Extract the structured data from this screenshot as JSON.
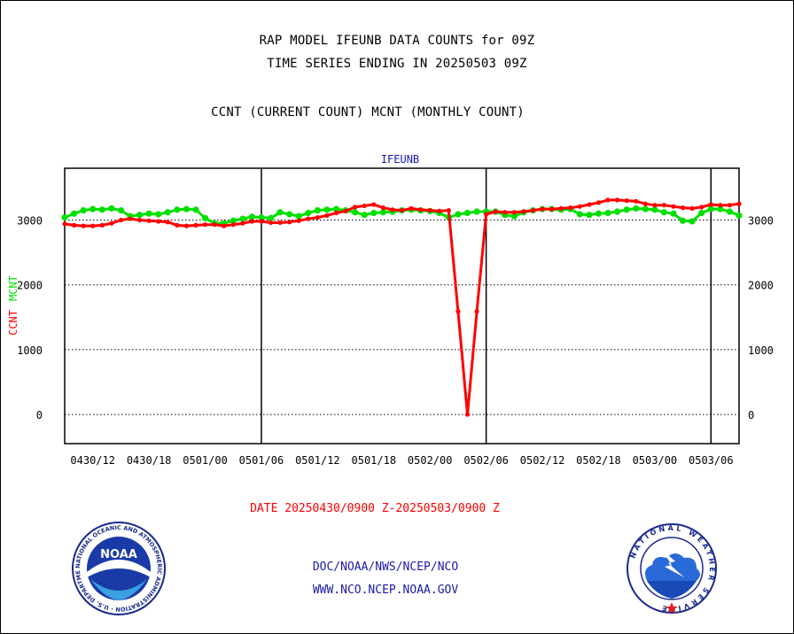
{
  "header": {
    "line1": "RAP MODEL IFEUNB DATA COUNTS for 09Z",
    "line2": "TIME SERIES ENDING IN 20250503 09Z",
    "line3": "CCNT (CURRENT COUNT) MCNT (MONTHLY COUNT)"
  },
  "chart_data": {
    "type": "line",
    "title": "IFEUNB",
    "ylabel_ccnt": "CCNT",
    "ylabel_mcnt": "MCNT",
    "xlabel": "DATE 20250430/0900 Z-20250503/0900 Z",
    "ylim": [
      -450,
      3800
    ],
    "yticks": [
      0,
      1000,
      2000,
      3000
    ],
    "ytick_labels": [
      "0",
      "1000",
      "2000",
      "3000"
    ],
    "xlim": [
      0,
      72
    ],
    "xticks": [
      3,
      9,
      15,
      21,
      27,
      33,
      39,
      45,
      51,
      57,
      63,
      69
    ],
    "xtick_labels": [
      "0430/12",
      "0430/18",
      "0501/00",
      "0501/06",
      "0501/12",
      "0501/18",
      "0502/00",
      "0502/06",
      "0502/12",
      "0502/18",
      "0503/00",
      "0503/06"
    ],
    "vlines": [
      21,
      45,
      69
    ],
    "grid": "dotted horizontal",
    "colors": {
      "ccnt": "#ff0000",
      "mcnt": "#00e000",
      "axes": "#000000"
    },
    "series": [
      {
        "name": "CCNT",
        "x": [
          0,
          1,
          2,
          3,
          4,
          5,
          6,
          7,
          8,
          9,
          10,
          11,
          12,
          13,
          14,
          15,
          16,
          17,
          18,
          19,
          20,
          21,
          22,
          23,
          24,
          25,
          26,
          27,
          28,
          29,
          30,
          31,
          32,
          33,
          34,
          35,
          36,
          37,
          38,
          39,
          40,
          41,
          42,
          43,
          44,
          45,
          46,
          47,
          48,
          49,
          50,
          51,
          52,
          53,
          54,
          55,
          56,
          57,
          58,
          59,
          60,
          61,
          62,
          63,
          64,
          65,
          66,
          67,
          68,
          69,
          70,
          71,
          72
        ],
        "values": [
          2940,
          2920,
          2910,
          2910,
          2920,
          2950,
          3000,
          3020,
          3000,
          2990,
          2980,
          2970,
          2920,
          2910,
          2920,
          2930,
          2930,
          2910,
          2930,
          2950,
          2980,
          2980,
          2960,
          2960,
          2970,
          2990,
          3020,
          3040,
          3070,
          3110,
          3140,
          3200,
          3220,
          3240,
          3190,
          3160,
          3150,
          3180,
          3160,
          3150,
          3140,
          3150,
          1590,
          0,
          1590,
          3090,
          3130,
          3120,
          3120,
          3130,
          3150,
          3170,
          3170,
          3180,
          3190,
          3210,
          3240,
          3270,
          3310,
          3310,
          3300,
          3290,
          3250,
          3230,
          3230,
          3210,
          3190,
          3180,
          3200,
          3240,
          3230,
          3230,
          3250
        ]
      },
      {
        "name": "MCNT",
        "x": [
          0,
          1,
          2,
          3,
          4,
          5,
          6,
          7,
          8,
          9,
          10,
          11,
          12,
          13,
          14,
          15,
          16,
          17,
          18,
          19,
          20,
          21,
          22,
          23,
          24,
          25,
          26,
          27,
          28,
          29,
          30,
          31,
          32,
          33,
          34,
          35,
          36,
          37,
          38,
          39,
          40,
          41,
          42,
          43,
          44,
          45,
          46,
          47,
          48,
          49,
          50,
          51,
          52,
          53,
          54,
          55,
          56,
          57,
          58,
          59,
          60,
          61,
          62,
          63,
          64,
          65,
          66,
          67,
          68,
          69,
          70,
          71,
          72
        ],
        "values": [
          3040,
          3100,
          3150,
          3170,
          3160,
          3180,
          3150,
          3060,
          3080,
          3100,
          3090,
          3120,
          3160,
          3170,
          3160,
          3030,
          2950,
          2950,
          2990,
          3020,
          3050,
          3040,
          3030,
          3120,
          3090,
          3060,
          3110,
          3150,
          3160,
          3170,
          3150,
          3120,
          3080,
          3110,
          3120,
          3130,
          3150,
          3160,
          3150,
          3140,
          3110,
          3040,
          3090,
          3110,
          3130,
          3130,
          3130,
          3080,
          3060,
          3120,
          3150,
          3170,
          3170,
          3160,
          3170,
          3090,
          3080,
          3100,
          3110,
          3130,
          3160,
          3180,
          3170,
          3160,
          3120,
          3100,
          2990,
          2980,
          3110,
          3170,
          3170,
          3130,
          3070
        ]
      }
    ]
  },
  "footer": {
    "line1": "DOC/NOAA/NWS/NCEP/NCO",
    "line2": "WWW.NCO.NCEP.NOAA.GOV"
  },
  "logos": {
    "left_name": "NOAA",
    "left_ring": "NATIONAL OCEANIC AND ATMOSPHERIC ADMINISTRATION · U.S. DEPARTMENT OF COMMERCE ·",
    "right_ring": "NATIONAL WEATHER SERVICE"
  }
}
